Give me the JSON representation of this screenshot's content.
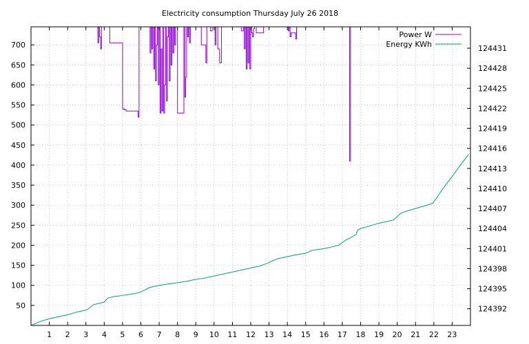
{
  "chart_data": {
    "type": "line",
    "title": "Electricity consumption Thursday July 26 2018",
    "x_ticks": [
      1,
      2,
      3,
      4,
      5,
      6,
      7,
      8,
      9,
      10,
      11,
      12,
      13,
      14,
      15,
      16,
      17,
      18,
      19,
      20,
      21,
      22,
      23
    ],
    "xlim": [
      0,
      24
    ],
    "ylim": [
      0,
      745
    ],
    "y_ticks": [
      50,
      100,
      150,
      200,
      250,
      300,
      350,
      400,
      450,
      500,
      550,
      600,
      650,
      700
    ],
    "y2lim": [
      124389.5,
      124434.2
    ],
    "y2_ticks": [
      124392,
      124395,
      124398,
      124401,
      124404,
      124407,
      124410,
      124413,
      124416,
      124419,
      124422,
      124425,
      124428,
      124431
    ],
    "grid": true,
    "legend_position": "top-right",
    "series": [
      {
        "name": "Power W",
        "axis": "left",
        "color": "#9400d3",
        "x": [
          3.55,
          3.6,
          3.65,
          3.7,
          3.75,
          3.8,
          3.85,
          3.9,
          3.95,
          4.0,
          4.05,
          4.1,
          4.15,
          4.2,
          4.25,
          4.3,
          4.4,
          4.5,
          4.6,
          4.7,
          4.8,
          4.95,
          5.0,
          5.1,
          5.2,
          5.4,
          5.6,
          5.8,
          5.85,
          5.9,
          6.0,
          6.1,
          6.2,
          6.3,
          6.45,
          6.5,
          6.55,
          6.6,
          6.65,
          6.7,
          6.75,
          6.8,
          6.85,
          6.9,
          6.95,
          7.0,
          7.05,
          7.1,
          7.15,
          7.2,
          7.25,
          7.3,
          7.35,
          7.4,
          7.45,
          7.5,
          7.55,
          7.6,
          7.65,
          7.7,
          7.75,
          7.8,
          7.85,
          7.9,
          8.0,
          8.1,
          8.2,
          8.3,
          8.35,
          8.4,
          8.45,
          8.5,
          8.55,
          8.6,
          8.65,
          8.7,
          8.8,
          9.0,
          9.2,
          9.3,
          9.4,
          9.45,
          9.5,
          9.55,
          9.6,
          9.7,
          9.8,
          9.9,
          10.0,
          10.05,
          10.1,
          10.2,
          10.3,
          10.4,
          10.5,
          10.6,
          10.8,
          11.0,
          11.2,
          11.4,
          11.5,
          11.6,
          11.65,
          11.7,
          11.75,
          11.8,
          11.85,
          11.9,
          11.95,
          12.0,
          12.05,
          12.1,
          12.15,
          12.2,
          12.3,
          12.4,
          12.5,
          12.7,
          13.0,
          13.5,
          14.0,
          14.05,
          14.1,
          14.15,
          14.2,
          14.3,
          14.4,
          14.45,
          14.5,
          14.6,
          17.3,
          17.35,
          17.4,
          17.45,
          17.5
        ],
        "values": [
          745,
          745,
          705,
          745,
          720,
          690,
          745,
          745,
          745,
          745,
          745,
          745,
          745,
          745,
          745,
          705,
          705,
          705,
          705,
          705,
          705,
          705,
          540,
          538,
          535,
          535,
          535,
          535,
          520,
          745,
          745,
          745,
          745,
          745,
          745,
          680,
          745,
          690,
          745,
          640,
          745,
          610,
          700,
          745,
          600,
          745,
          530,
          690,
          535,
          745,
          530,
          600,
          745,
          560,
          720,
          745,
          610,
          745,
          650,
          745,
          680,
          745,
          700,
          745,
          530,
          530,
          530,
          530,
          745,
          570,
          620,
          745,
          720,
          745,
          705,
          745,
          745,
          745,
          745,
          700,
          700,
          700,
          700,
          655,
          745,
          745,
          735,
          745,
          745,
          700,
          745,
          690,
          655,
          745,
          745,
          745,
          745,
          745,
          745,
          745,
          735,
          745,
          690,
          745,
          640,
          745,
          655,
          745,
          640,
          745,
          730,
          720,
          740,
          745,
          730,
          730,
          730,
          745,
          745,
          745,
          745,
          735,
          745,
          720,
          730,
          730,
          730,
          715,
          745,
          745,
          745,
          745,
          410,
          745,
          745
        ]
      },
      {
        "name": "Energy KWh",
        "axis": "right",
        "color": "#009e73",
        "x": [
          0,
          0.5,
          1,
          1.5,
          2,
          2.5,
          3,
          3.2,
          3.4,
          3.7,
          4,
          4.2,
          4.5,
          5,
          5.5,
          5.9,
          6.2,
          6.5,
          7,
          7.5,
          8,
          8.5,
          9,
          9.5,
          10,
          10.5,
          11,
          11.5,
          12,
          12.5,
          12.8,
          13,
          13.2,
          13.5,
          14,
          14.5,
          15,
          15.1,
          15.3,
          15.5,
          16,
          16.5,
          16.8,
          17,
          17.2,
          17.5,
          17.75,
          17.85,
          18,
          18.5,
          19,
          19.5,
          19.8,
          20,
          20.2,
          20.5,
          21,
          21.5,
          21.95,
          22.2,
          22.5,
          23,
          23.5,
          23.9
        ],
        "values": [
          124389.5,
          124390.1,
          124390.5,
          124390.8,
          124391.1,
          124391.5,
          124391.8,
          124392.1,
          124392.6,
          124392.8,
          124393.0,
          124393.6,
          124393.8,
          124394.0,
          124394.2,
          124394.4,
          124394.8,
          124395.2,
          124395.5,
          124395.7,
          124395.9,
          124396.1,
          124396.4,
          124396.6,
          124396.9,
          124397.2,
          124397.5,
          124397.8,
          124398.1,
          124398.4,
          124398.7,
          124398.9,
          124399.2,
          124399.5,
          124399.8,
          124400.1,
          124400.3,
          124400.4,
          124400.7,
          124400.8,
          124401.0,
          124401.3,
          124401.5,
          124401.9,
          124402.3,
          124402.7,
          124403.1,
          124403.8,
          124404.0,
          124404.4,
          124404.8,
          124405.1,
          124405.3,
          124405.8,
          124406.3,
          124406.6,
          124407.0,
          124407.4,
          124407.8,
          124408.8,
          124410.0,
          124411.8,
          124413.7,
          124415.1
        ]
      }
    ]
  }
}
